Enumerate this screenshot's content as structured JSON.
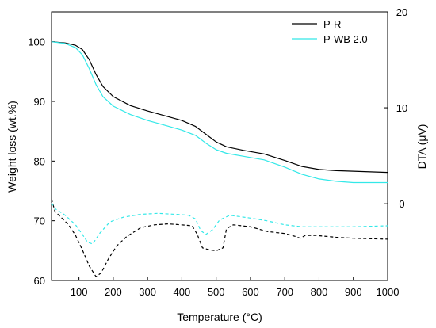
{
  "chart_data": {
    "type": "line",
    "xlabel": "Temperature (°C)",
    "ylabel": "Weight loss (wt.%)",
    "y2label": "DTA (μV)",
    "xlim": [
      20,
      1000
    ],
    "ylim": [
      60,
      105
    ],
    "y2lim": [
      -8,
      20
    ],
    "x_ticks": [
      100,
      200,
      300,
      400,
      500,
      600,
      700,
      800,
      900,
      1000
    ],
    "y_ticks": [
      60,
      70,
      80,
      90,
      100
    ],
    "y2_ticks": [
      0,
      10,
      20
    ],
    "legend_position": "top-right",
    "series": [
      {
        "name": "P-R",
        "color": "#000000",
        "style": "solid",
        "axis": "left",
        "points": [
          [
            20,
            100
          ],
          [
            60,
            99.8
          ],
          [
            90,
            99.4
          ],
          [
            110,
            98.7
          ],
          [
            130,
            97
          ],
          [
            150,
            94.5
          ],
          [
            170,
            92.5
          ],
          [
            200,
            90.8
          ],
          [
            250,
            89.3
          ],
          [
            300,
            88.4
          ],
          [
            350,
            87.6
          ],
          [
            400,
            86.8
          ],
          [
            440,
            85.8
          ],
          [
            470,
            84.5
          ],
          [
            500,
            83.2
          ],
          [
            530,
            82.4
          ],
          [
            580,
            81.8
          ],
          [
            640,
            81.2
          ],
          [
            700,
            80.1
          ],
          [
            750,
            79.1
          ],
          [
            800,
            78.6
          ],
          [
            850,
            78.4
          ],
          [
            900,
            78.3
          ],
          [
            950,
            78.2
          ],
          [
            1000,
            78.1
          ]
        ]
      },
      {
        "name": "P-WB 2.0",
        "color": "#33e8e8",
        "style": "solid",
        "axis": "left",
        "points": [
          [
            20,
            100
          ],
          [
            60,
            99.7
          ],
          [
            90,
            99
          ],
          [
            110,
            97.8
          ],
          [
            130,
            95.5
          ],
          [
            150,
            92.8
          ],
          [
            170,
            90.8
          ],
          [
            200,
            89.2
          ],
          [
            250,
            87.8
          ],
          [
            300,
            86.8
          ],
          [
            350,
            86
          ],
          [
            400,
            85.2
          ],
          [
            440,
            84.3
          ],
          [
            470,
            83
          ],
          [
            500,
            81.9
          ],
          [
            530,
            81.3
          ],
          [
            580,
            80.8
          ],
          [
            640,
            80.2
          ],
          [
            700,
            79
          ],
          [
            750,
            77.8
          ],
          [
            800,
            77
          ],
          [
            850,
            76.6
          ],
          [
            900,
            76.4
          ],
          [
            950,
            76.4
          ],
          [
            1000,
            76.4
          ]
        ]
      },
      {
        "name": "",
        "color": "#000000",
        "style": "dashed",
        "axis": "right",
        "points": [
          [
            20,
            0.5
          ],
          [
            30,
            -0.8
          ],
          [
            50,
            -1.5
          ],
          [
            70,
            -2.2
          ],
          [
            90,
            -3.3
          ],
          [
            110,
            -4.8
          ],
          [
            130,
            -6.5
          ],
          [
            150,
            -7.6
          ],
          [
            165,
            -7.2
          ],
          [
            185,
            -5.8
          ],
          [
            210,
            -4.4
          ],
          [
            240,
            -3.4
          ],
          [
            280,
            -2.5
          ],
          [
            320,
            -2.2
          ],
          [
            360,
            -2.1
          ],
          [
            400,
            -2.2
          ],
          [
            430,
            -2.3
          ],
          [
            445,
            -3.2
          ],
          [
            460,
            -4.6
          ],
          [
            480,
            -4.8
          ],
          [
            500,
            -4.9
          ],
          [
            520,
            -4.6
          ],
          [
            530,
            -2.6
          ],
          [
            550,
            -2.2
          ],
          [
            600,
            -2.4
          ],
          [
            650,
            -2.9
          ],
          [
            700,
            -3.1
          ],
          [
            730,
            -3.4
          ],
          [
            745,
            -3.6
          ],
          [
            760,
            -3.3
          ],
          [
            790,
            -3.3
          ],
          [
            850,
            -3.5
          ],
          [
            900,
            -3.6
          ],
          [
            1000,
            -3.7
          ]
        ]
      },
      {
        "name": "",
        "color": "#33e8e8",
        "style": "dashed",
        "axis": "right",
        "points": [
          [
            20,
            0.1
          ],
          [
            30,
            -0.5
          ],
          [
            60,
            -1.2
          ],
          [
            90,
            -2.2
          ],
          [
            110,
            -3.2
          ],
          [
            125,
            -4
          ],
          [
            140,
            -4.2
          ],
          [
            160,
            -3.1
          ],
          [
            190,
            -1.9
          ],
          [
            230,
            -1.4
          ],
          [
            280,
            -1.1
          ],
          [
            330,
            -1
          ],
          [
            380,
            -1.1
          ],
          [
            420,
            -1.2
          ],
          [
            440,
            -1.6
          ],
          [
            455,
            -2.8
          ],
          [
            470,
            -3.2
          ],
          [
            490,
            -2.7
          ],
          [
            510,
            -1.7
          ],
          [
            540,
            -1.2
          ],
          [
            600,
            -1.5
          ],
          [
            650,
            -1.8
          ],
          [
            700,
            -2.2
          ],
          [
            750,
            -2.4
          ],
          [
            800,
            -2.4
          ],
          [
            900,
            -2.4
          ],
          [
            1000,
            -2.3
          ]
        ]
      }
    ]
  }
}
